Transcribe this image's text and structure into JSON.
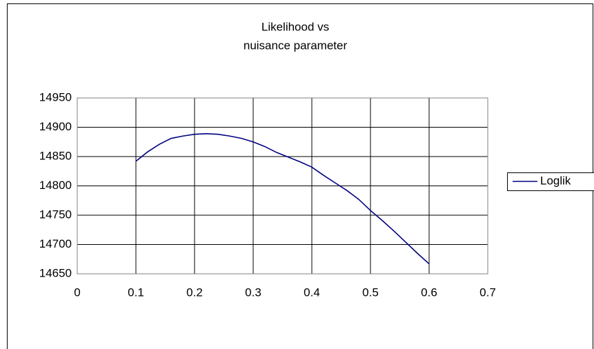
{
  "chart_data": {
    "type": "line",
    "title": [
      "Likelihood vs",
      "nuisance parameter"
    ],
    "x": [
      0.1,
      0.12,
      0.14,
      0.16,
      0.18,
      0.2,
      0.22,
      0.24,
      0.26,
      0.28,
      0.3,
      0.32,
      0.34,
      0.36,
      0.38,
      0.4,
      0.42,
      0.44,
      0.46,
      0.48,
      0.5,
      0.52,
      0.54,
      0.56,
      0.58,
      0.6
    ],
    "series": [
      {
        "name": "Loglik",
        "color": "#000080",
        "values": [
          14842,
          14858,
          14871,
          14881,
          14885,
          14888,
          14889,
          14888,
          14885,
          14881,
          14875,
          14867,
          14857,
          14849,
          14841,
          14832,
          14818,
          14805,
          14792,
          14777,
          14758,
          14741,
          14723,
          14704,
          14685,
          14667
        ]
      }
    ],
    "xlim": [
      0,
      0.7
    ],
    "xticks": [
      0,
      0.1,
      0.2,
      0.3,
      0.4,
      0.5,
      0.6,
      0.7
    ],
    "ylim": [
      14650,
      14950
    ],
    "yticks": [
      14650,
      14700,
      14750,
      14800,
      14850,
      14900,
      14950
    ],
    "grid": true,
    "legend": "right"
  }
}
